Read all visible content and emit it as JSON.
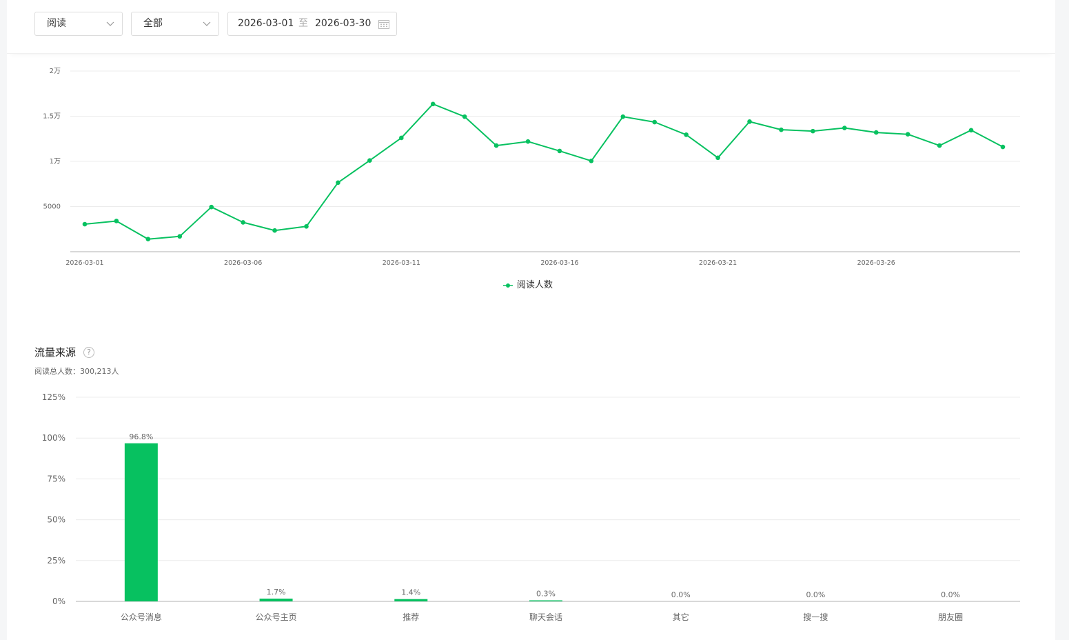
{
  "filters": {
    "metric_select": "阅读",
    "scope_select": "全部",
    "date_start": "2026-03-01",
    "date_separator": "至",
    "date_end": "2026-03-30"
  },
  "colors": {
    "accent": "#07c160",
    "grid": "#ececec",
    "axis": "#cccccc"
  },
  "chart_data": [
    {
      "type": "line",
      "legend_position": "bottom",
      "grid": true,
      "ylim": [
        0,
        20000
      ],
      "y_ticks": [
        {
          "value": 5000,
          "label": "5000"
        },
        {
          "value": 10000,
          "label": "1万"
        },
        {
          "value": 15000,
          "label": "1.5万"
        },
        {
          "value": 20000,
          "label": "2万"
        }
      ],
      "x": [
        "2026-03-01",
        "2026-03-02",
        "2026-03-03",
        "2026-03-04",
        "2026-03-05",
        "2026-03-06",
        "2026-03-07",
        "2026-03-08",
        "2026-03-09",
        "2026-03-10",
        "2026-03-11",
        "2026-03-12",
        "2026-03-13",
        "2026-03-14",
        "2026-03-15",
        "2026-03-16",
        "2026-03-17",
        "2026-03-18",
        "2026-03-19",
        "2026-03-20",
        "2026-03-21",
        "2026-03-22",
        "2026-03-23",
        "2026-03-24",
        "2026-03-25",
        "2026-03-26",
        "2026-03-27",
        "2026-03-28",
        "2026-03-29",
        "2026-03-30"
      ],
      "x_tick_labels": [
        "2026-03-01",
        "2026-03-06",
        "2026-03-11",
        "2026-03-16",
        "2026-03-21",
        "2026-03-26"
      ],
      "series": [
        {
          "name": "阅读人数",
          "values": [
            3050,
            3400,
            1400,
            1700,
            4950,
            3250,
            2350,
            2800,
            7650,
            10100,
            12600,
            16350,
            14950,
            11750,
            12200,
            11150,
            10050,
            14950,
            14350,
            12950,
            10400,
            14400,
            13500,
            13350,
            13700,
            13200,
            13000,
            11750,
            13450,
            11600
          ]
        }
      ]
    },
    {
      "type": "bar",
      "grid": true,
      "ylim": [
        0,
        125
      ],
      "y_ticks": [
        {
          "value": 0,
          "label": "0%"
        },
        {
          "value": 25,
          "label": "25%"
        },
        {
          "value": 50,
          "label": "50%"
        },
        {
          "value": 75,
          "label": "75%"
        },
        {
          "value": 100,
          "label": "100%"
        },
        {
          "value": 125,
          "label": "125%"
        }
      ],
      "categories": [
        "公众号消息",
        "公众号主页",
        "推荐",
        "聊天会话",
        "其它",
        "搜一搜",
        "朋友圈"
      ],
      "values": [
        96.8,
        1.7,
        1.4,
        0.3,
        0.0,
        0.0,
        0.0
      ],
      "data_labels": [
        "96.8%",
        "1.7%",
        "1.4%",
        "0.3%",
        "0.0%",
        "0.0%",
        "0.0%"
      ]
    }
  ],
  "traffic": {
    "title": "流量来源",
    "help_icon": "?",
    "total_readers": "阅读总人数：300,213人"
  }
}
